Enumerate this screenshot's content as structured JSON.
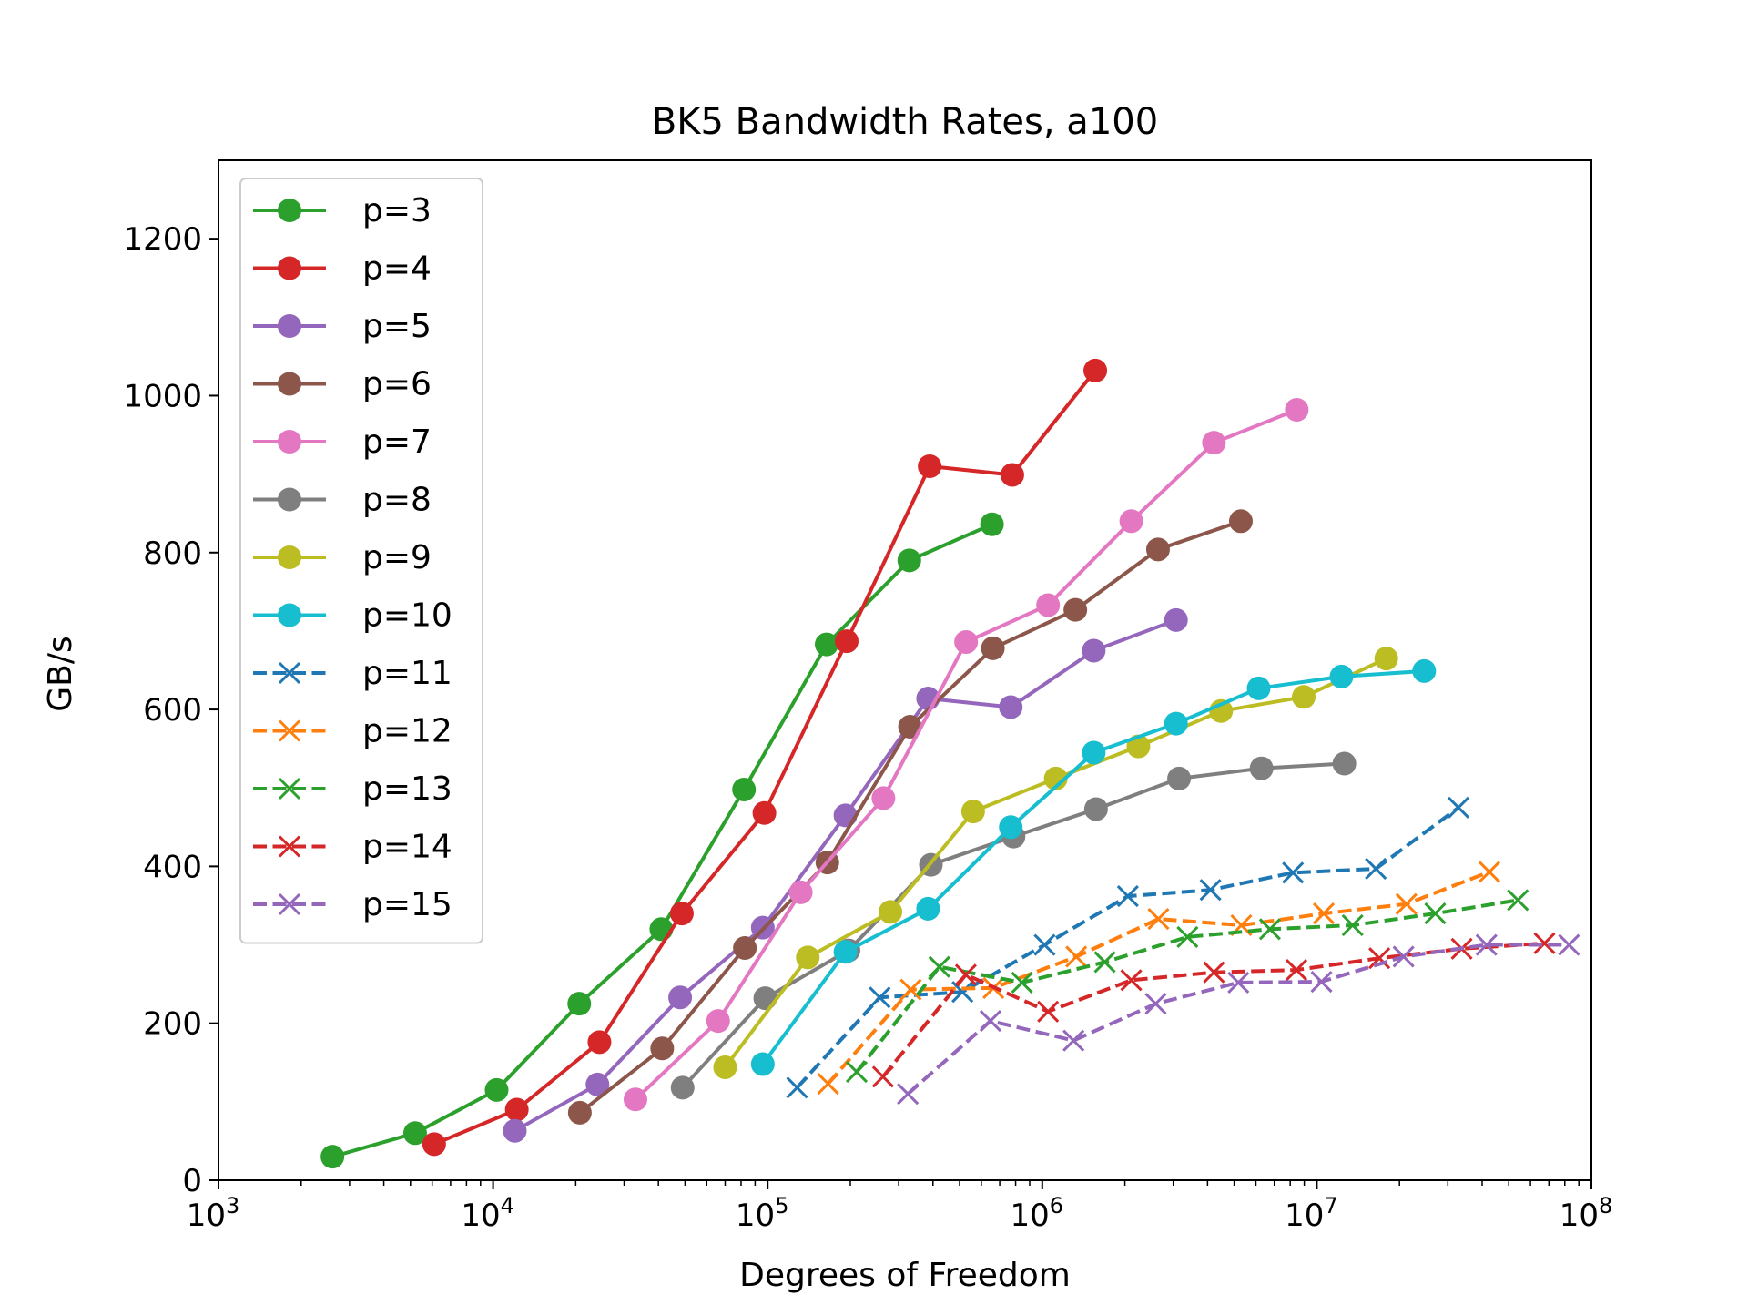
{
  "chart_data": {
    "type": "line",
    "title": "BK5 Bandwidth Rates, a100",
    "xlabel": "Degrees of Freedom",
    "ylabel": "GB/s",
    "xscale": "log",
    "xlim": [
      1000,
      100000000
    ],
    "ylim": [
      0,
      1300
    ],
    "x_ticks": [
      {
        "base": "10",
        "exp": "3",
        "value": 1000
      },
      {
        "base": "10",
        "exp": "4",
        "value": 10000
      },
      {
        "base": "10",
        "exp": "5",
        "value": 100000
      },
      {
        "base": "10",
        "exp": "6",
        "value": 1000000
      },
      {
        "base": "10",
        "exp": "7",
        "value": 10000000
      },
      {
        "base": "10",
        "exp": "8",
        "value": 100000000
      }
    ],
    "y_ticks": [
      {
        "label": "0",
        "value": 0
      },
      {
        "label": "200",
        "value": 200
      },
      {
        "label": "400",
        "value": 400
      },
      {
        "label": "600",
        "value": 600
      },
      {
        "label": "800",
        "value": 800
      },
      {
        "label": "1000",
        "value": 1000
      },
      {
        "label": "1200",
        "value": 1200
      }
    ],
    "grid": false,
    "legend_position": "top-left",
    "series": [
      {
        "name": "p=3",
        "color": "#2ca02c",
        "marker": "circle",
        "dashed": false,
        "x": [
          2600,
          5200,
          10300,
          20600,
          41000,
          82000,
          164000,
          328000,
          656000
        ],
        "y": [
          30,
          60,
          115,
          225,
          320,
          498,
          683,
          790,
          836
        ]
      },
      {
        "name": "p=4",
        "color": "#d62728",
        "marker": "circle",
        "dashed": false,
        "x": [
          6100,
          12200,
          24400,
          48700,
          97300,
          194000,
          389000,
          778000,
          1560000
        ],
        "y": [
          46,
          90,
          176,
          340,
          468,
          687,
          910,
          899,
          1032
        ]
      },
      {
        "name": "p=5",
        "color": "#9467bd",
        "marker": "circle",
        "dashed": false,
        "x": [
          12000,
          24000,
          48000,
          96000,
          192000,
          384000,
          768000,
          1540000,
          3070000
        ],
        "y": [
          63,
          122,
          233,
          322,
          465,
          614,
          603,
          675,
          714
        ]
      },
      {
        "name": "p=6",
        "color": "#8c564b",
        "marker": "circle",
        "dashed": false,
        "x": [
          20700,
          41300,
          82600,
          165000,
          330000,
          661000,
          1320000,
          2640000,
          5290000
        ],
        "y": [
          86,
          168,
          296,
          405,
          578,
          678,
          727,
          804,
          840
        ]
      },
      {
        "name": "p=7",
        "color": "#e377c2",
        "marker": "circle",
        "dashed": false,
        "x": [
          33000,
          66000,
          132000,
          264000,
          528000,
          1050000,
          2110000,
          4220000,
          8450000
        ],
        "y": [
          103,
          203,
          367,
          487,
          686,
          733,
          840,
          940,
          982
        ]
      },
      {
        "name": "p=8",
        "color": "#7f7f7f",
        "marker": "circle",
        "dashed": false,
        "x": [
          49000,
          98000,
          197000,
          393000,
          786000,
          1570000,
          3150000,
          6290000,
          12600000
        ],
        "y": [
          118,
          232,
          293,
          402,
          438,
          473,
          512,
          525,
          531
        ]
      },
      {
        "name": "p=9",
        "color": "#bcbd22",
        "marker": "circle",
        "dashed": false,
        "x": [
          70000,
          140000,
          280000,
          560000,
          1120000,
          2240000,
          4480000,
          8960000,
          17900000
        ],
        "y": [
          144,
          284,
          342,
          470,
          512,
          553,
          598,
          616,
          665
        ]
      },
      {
        "name": "p=10",
        "color": "#17becf",
        "marker": "circle",
        "dashed": false,
        "x": [
          96000,
          192000,
          384000,
          768000,
          1540000,
          3070000,
          6140000,
          12300000,
          24600000
        ],
        "y": [
          148,
          291,
          346,
          450,
          545,
          582,
          627,
          642,
          649
        ]
      },
      {
        "name": "p=11",
        "color": "#1f77b4",
        "marker": "x",
        "dashed": true,
        "x": [
          128000,
          256000,
          512000,
          1020000,
          2050000,
          4100000,
          8190000,
          16400000,
          32800000
        ],
        "y": [
          118,
          233,
          240,
          300,
          362,
          370,
          392,
          397,
          475
        ]
      },
      {
        "name": "p=12",
        "color": "#ff7f0e",
        "marker": "x",
        "dashed": true,
        "x": [
          166000,
          332000,
          664000,
          1330000,
          2650000,
          5310000,
          10600000,
          21200000,
          42500000
        ],
        "y": [
          123,
          243,
          245,
          285,
          333,
          325,
          340,
          352,
          393
        ]
      },
      {
        "name": "p=13",
        "color": "#2ca02c",
        "marker": "x",
        "dashed": true,
        "x": [
          211000,
          422000,
          844000,
          1690000,
          3380000,
          6750000,
          13500000,
          27000000,
          54000000
        ],
        "y": [
          138,
          272,
          252,
          278,
          310,
          320,
          325,
          340,
          357
        ]
      },
      {
        "name": "p=14",
        "color": "#d62728",
        "marker": "x",
        "dashed": true,
        "x": [
          263000,
          527000,
          1050000,
          2110000,
          4220000,
          8430000,
          16900000,
          33700000,
          67500000
        ],
        "y": [
          132,
          262,
          215,
          255,
          265,
          268,
          283,
          295,
          302
        ]
      },
      {
        "name": "p=15",
        "color": "#9467bd",
        "marker": "x",
        "dashed": true,
        "x": [
          324000,
          648000,
          1300000,
          2590000,
          5180000,
          10400000,
          20700000,
          41500000,
          82900000
        ],
        "y": [
          110,
          203,
          178,
          225,
          252,
          253,
          285,
          300,
          300
        ]
      }
    ]
  }
}
